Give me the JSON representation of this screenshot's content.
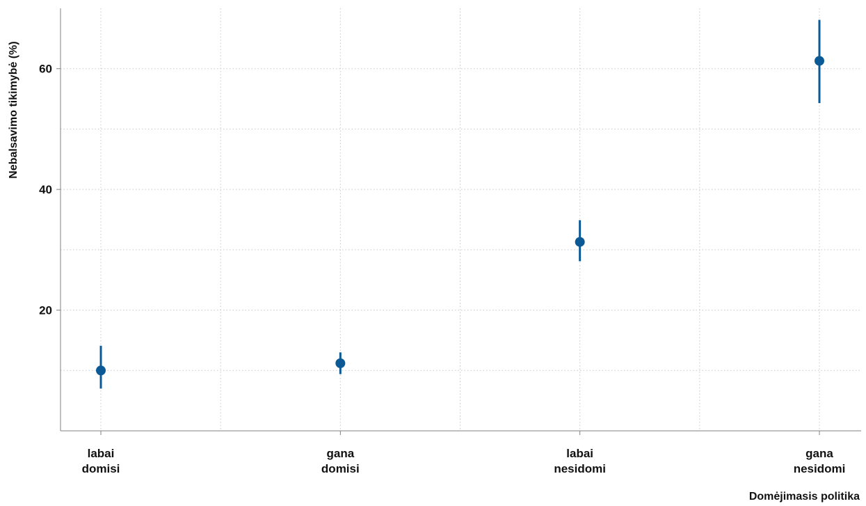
{
  "chart_data": {
    "type": "scatter",
    "title": "",
    "xlabel": "Domėjimasis politika",
    "ylabel": "Nebalsavimo tikimybė (%)",
    "categories": [
      [
        "labai",
        "domisi"
      ],
      [
        "gana",
        "domisi"
      ],
      [
        "labai",
        "nesidomi"
      ],
      [
        "gana",
        "nesidomi"
      ]
    ],
    "series": [
      {
        "values": [
          10.0,
          11.2,
          31.3,
          61.3
        ],
        "ci_low": [
          7.0,
          9.4,
          28.1,
          54.3
        ],
        "ci_high": [
          14.1,
          13.0,
          34.9,
          68.1
        ]
      }
    ],
    "yticks": [
      20,
      40,
      60
    ],
    "ylim": [
      0,
      70
    ],
    "grid": true,
    "marker_color": "#0b5a96",
    "grid_color": "#c8c8c8",
    "axis_color": "#808080"
  }
}
